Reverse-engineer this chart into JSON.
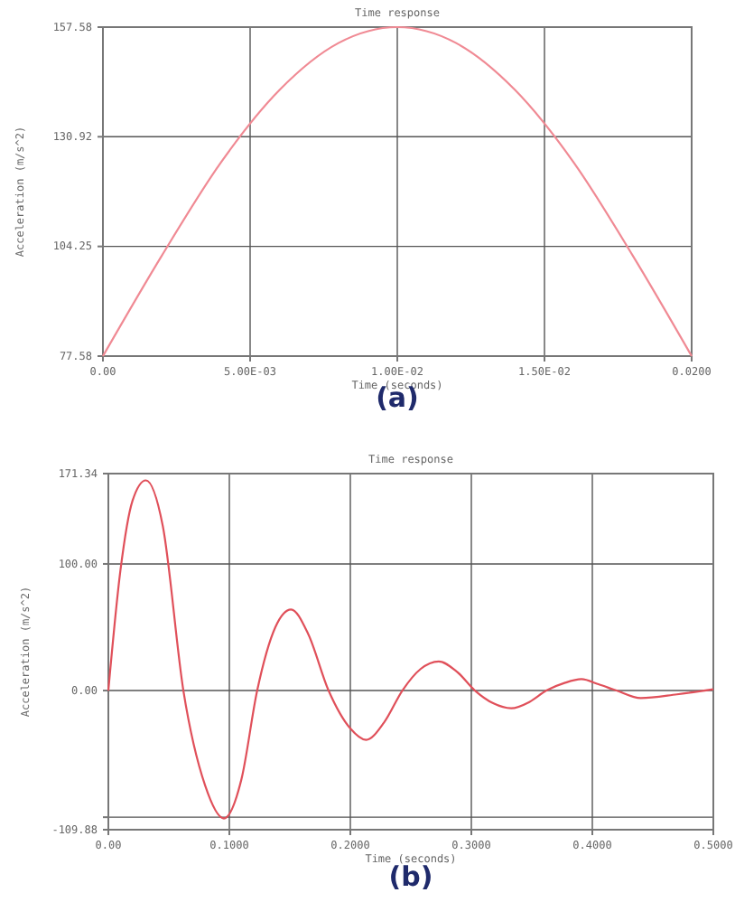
{
  "chart_data": [
    {
      "type": "line",
      "title": "Time response",
      "xlabel": "Time (seconds)",
      "ylabel": "Acceleration (m/s^2)",
      "annotations": [
        "(a)"
      ],
      "x": [
        0,
        0.002,
        0.004,
        0.006,
        0.008,
        0.01,
        0.012,
        0.014,
        0.016,
        0.018,
        0.02
      ],
      "series": [
        {
          "color": "#f08a94",
          "values": [
            77.58,
            102,
            124.6,
            142.3,
            153.7,
            157.58,
            153.7,
            142.3,
            124.6,
            102,
            77.58
          ]
        }
      ],
      "xlim": [
        0,
        0.02
      ],
      "xticks": [
        {
          "value": 0,
          "label": "0.00"
        },
        {
          "value": 0.005,
          "label": "5.00E-03"
        },
        {
          "value": 0.01,
          "label": "1.00E-02"
        },
        {
          "value": 0.015,
          "label": "1.50E-02"
        },
        {
          "value": 0.02,
          "label": "0.0200"
        }
      ],
      "ylim": [
        77.58,
        157.58
      ],
      "yticks": [
        77.58,
        104.25,
        130.92,
        157.58
      ],
      "grid": true,
      "line_style": "solid"
    },
    {
      "type": "line",
      "title": "Time response",
      "xlabel": "Time (seconds)",
      "ylabel": "Acceleration (m/s^2)",
      "annotations": [
        "(b)"
      ],
      "x": [
        0,
        0.01,
        0.02,
        0.031,
        0.045,
        0.062,
        0.08,
        0.0955,
        0.11,
        0.123,
        0.138,
        0.151,
        0.165,
        0.182,
        0.2,
        0.213,
        0.228,
        0.243,
        0.258,
        0.273,
        0.288,
        0.303,
        0.318,
        0.333,
        0.348,
        0.362,
        0.377,
        0.391,
        0.405,
        0.42,
        0.44,
        0.47,
        0.5
      ],
      "series": [
        {
          "color": "#e0505a",
          "values": [
            0,
            95,
            150,
            166,
            130,
            0,
            -75,
            -101,
            -70,
            0,
            50,
            64,
            45,
            0,
            -30,
            -39,
            -25,
            0,
            17,
            23,
            15,
            0,
            -10,
            -14,
            -9,
            0,
            6,
            9,
            5,
            0,
            -6,
            -3,
            1
          ]
        }
      ],
      "xlim": [
        0,
        0.5
      ],
      "xticks": [
        {
          "value": 0,
          "label": "0.00"
        },
        {
          "value": 0.1,
          "label": "0.1000"
        },
        {
          "value": 0.2,
          "label": "0.2000"
        },
        {
          "value": 0.3,
          "label": "0.3000"
        },
        {
          "value": 0.4,
          "label": "0.4000"
        },
        {
          "value": 0.5,
          "label": "0.5000"
        }
      ],
      "ylim": [
        -109.88,
        171.34
      ],
      "yticks": [
        -109.88,
        {
          "value": -100,
          "label": null
        },
        {
          "value": 0,
          "label": "0.00"
        },
        {
          "value": 100,
          "label": "100.00"
        },
        171.34
      ],
      "grid": true,
      "line_style": "solid"
    }
  ]
}
